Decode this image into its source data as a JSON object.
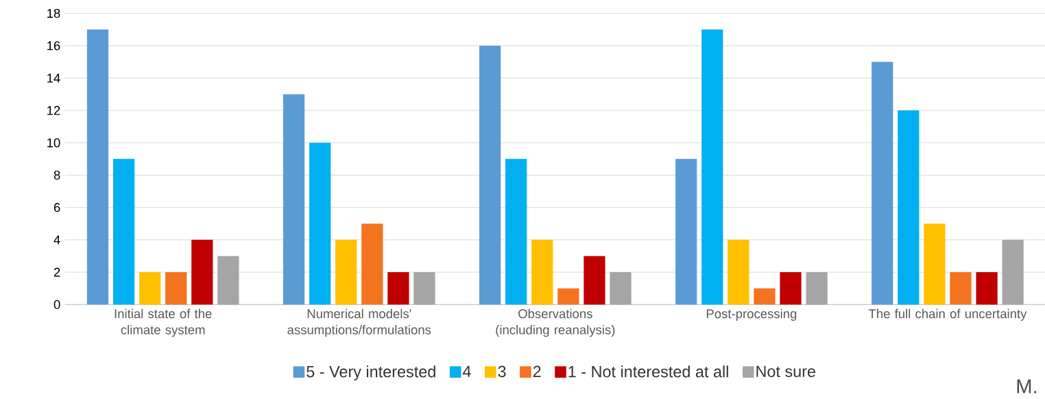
{
  "chart_data": {
    "type": "bar",
    "categories": [
      "Initial state of the climate system",
      "Numerical models' assumptions/formulations",
      "Observations (including reanalysis)",
      "Post-processing",
      "The full chain of uncertainty"
    ],
    "series": [
      {
        "name": "5 - Very interested",
        "color": "#5b9bd5",
        "values": [
          17,
          13,
          16,
          9,
          15
        ]
      },
      {
        "name": "4",
        "color": "#00b0f0",
        "values": [
          9,
          10,
          9,
          17,
          12
        ]
      },
      {
        "name": "3",
        "color": "#ffc000",
        "values": [
          2,
          4,
          4,
          4,
          5
        ]
      },
      {
        "name": "2",
        "color": "#f4731f",
        "values": [
          2,
          5,
          1,
          1,
          2
        ]
      },
      {
        "name": "1 - Not interested at all",
        "color": "#c00000",
        "values": [
          4,
          2,
          3,
          2,
          2
        ]
      },
      {
        "name": "Not sure",
        "color": "#a5a5a5",
        "values": [
          3,
          2,
          2,
          2,
          4
        ]
      }
    ],
    "ylim": [
      0,
      18
    ],
    "yticks": [
      0,
      2,
      4,
      6,
      8,
      10,
      12,
      14,
      16,
      18
    ],
    "grid": "y",
    "legend": "bottom",
    "annotations": [
      "M."
    ]
  }
}
